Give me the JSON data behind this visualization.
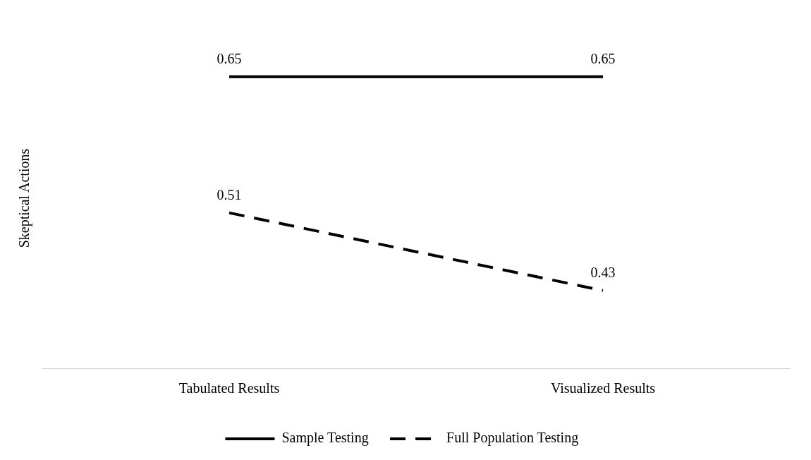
{
  "chart_data": {
    "type": "line",
    "ylabel": "Skeptical Actions",
    "categories": [
      "Tabulated Results",
      "Visualized Results"
    ],
    "series": [
      {
        "name": "Sample Testing",
        "color": "#000000",
        "values": [
          0.65,
          0.65
        ],
        "line_style": "solid"
      },
      {
        "name": "Full Population Testing",
        "color": "#000000",
        "values": [
          0.51,
          0.43
        ],
        "line_style": "dashed"
      }
    ],
    "data_labels": true,
    "legend": "bottom",
    "marker": "none",
    "grid": false
  }
}
